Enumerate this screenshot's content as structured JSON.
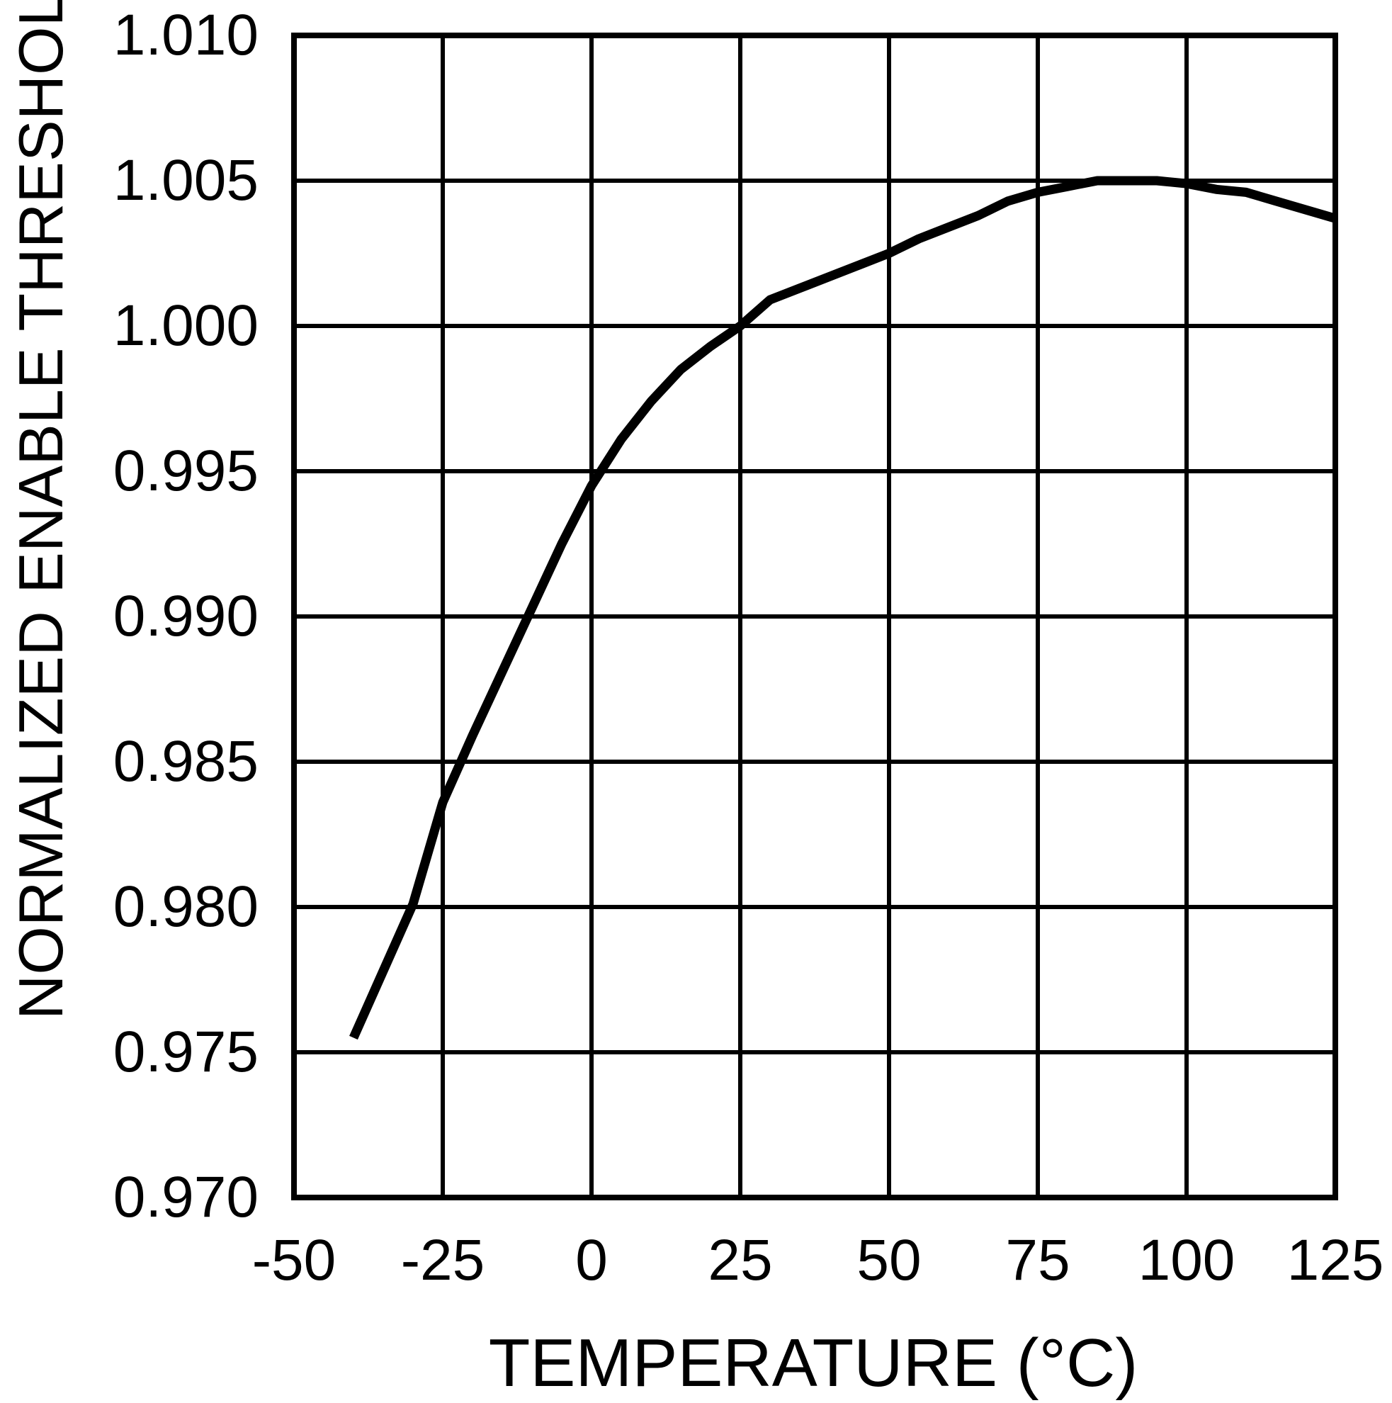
{
  "page": {
    "background_color": "#ffffff",
    "foreground_color": "#000000"
  },
  "chart_data": {
    "type": "line",
    "title": "",
    "xlabel": "TEMPERATURE (°C)",
    "ylabel": "NORMALIZED ENABLE THRESHOLD",
    "xlim": [
      -50,
      125
    ],
    "ylim": [
      0.97,
      1.01
    ],
    "x_tick_labels": [
      "-50",
      "-25",
      "0",
      "25",
      "50",
      "75",
      "100",
      "125"
    ],
    "x_tick_values": [
      -50,
      -25,
      0,
      25,
      50,
      75,
      100,
      125
    ],
    "y_tick_labels": [
      "1.010",
      "1.005",
      "1.000",
      "0.995",
      "0.990",
      "0.985",
      "0.980",
      "0.975",
      "0.970"
    ],
    "y_tick_values": [
      1.01,
      1.005,
      1.0,
      0.995,
      0.99,
      0.985,
      0.98,
      0.975,
      0.97
    ],
    "grid": true,
    "legend": "none",
    "line_color": "#000000",
    "line_width": 13,
    "grid_line_width": 6,
    "frame_line_width": 8,
    "series": [
      {
        "name": "normalized enable threshold vs temperature",
        "x": [
          -40,
          -35,
          -30,
          -25,
          -20,
          -15,
          -10,
          -5,
          0,
          5,
          10,
          15,
          20,
          25,
          30,
          35,
          40,
          45,
          50,
          55,
          60,
          65,
          70,
          75,
          80,
          85,
          90,
          95,
          100,
          105,
          110,
          115,
          120,
          125
        ],
        "y": [
          0.9755,
          0.9778,
          0.9801,
          0.9836,
          0.9859,
          0.9881,
          0.9903,
          0.9925,
          0.9945,
          0.9961,
          0.9974,
          0.9985,
          0.9993,
          1.0,
          1.0009,
          1.0013,
          1.0017,
          1.0021,
          1.0025,
          1.003,
          1.0034,
          1.0038,
          1.0043,
          1.0046,
          1.0048,
          1.005,
          1.005,
          1.005,
          1.0049,
          1.0047,
          1.0046,
          1.0043,
          1.004,
          1.0037
        ]
      }
    ]
  }
}
